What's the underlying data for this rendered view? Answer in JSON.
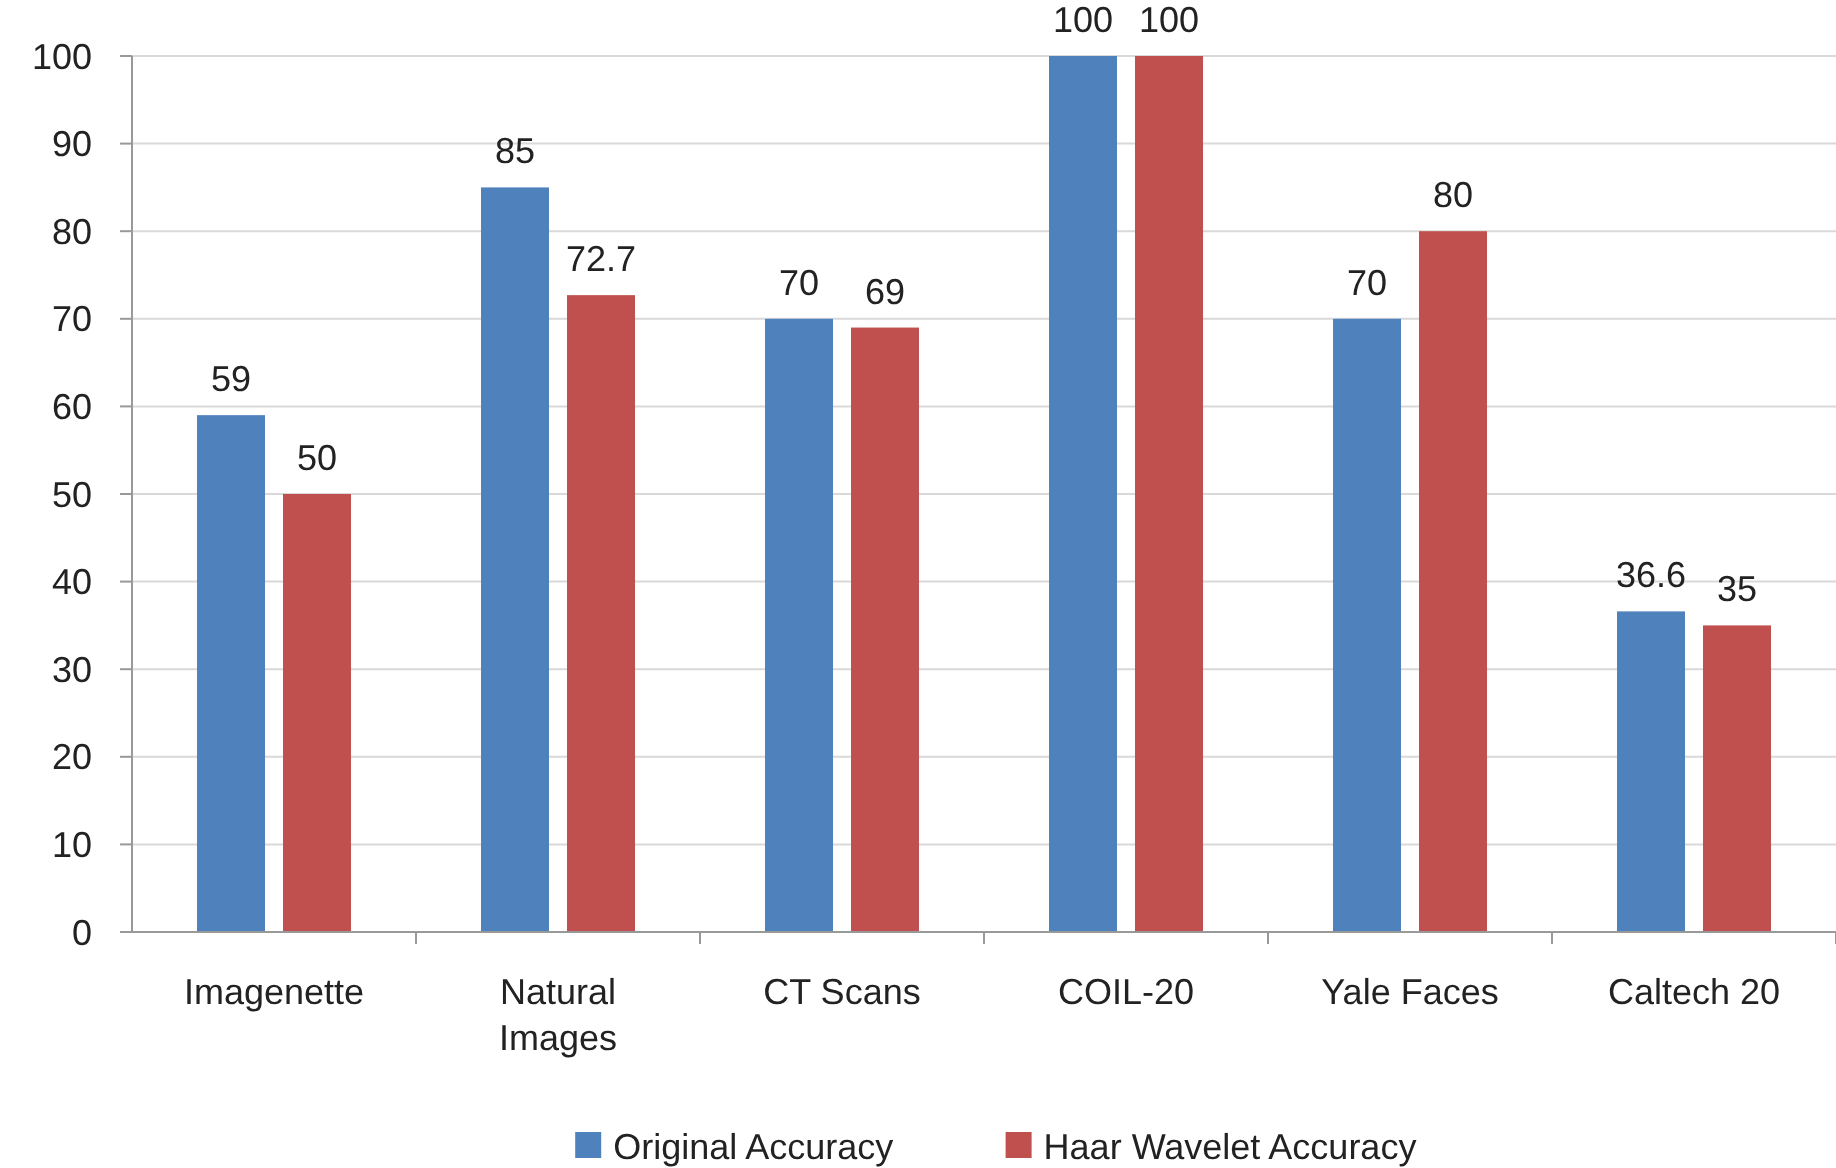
{
  "chart_data": {
    "type": "bar",
    "categories": [
      "Imagenette",
      "Natural Images",
      "CT Scans",
      "COIL-20",
      "Yale Faces",
      "Caltech 20"
    ],
    "series": [
      {
        "name": "Original Accuracy",
        "color": "#4f81bd",
        "values": [
          59,
          85,
          70,
          100,
          70,
          36.6
        ]
      },
      {
        "name": "Haar Wavelet Accuracy",
        "color": "#c0504d",
        "values": [
          50,
          72.7,
          69,
          100,
          80,
          35
        ]
      }
    ],
    "ylim": [
      0,
      100
    ],
    "yticks": [
      0,
      10,
      20,
      30,
      40,
      50,
      60,
      70,
      80,
      90,
      100
    ],
    "grid": "y",
    "legend": "bottom",
    "data_labels": true
  }
}
